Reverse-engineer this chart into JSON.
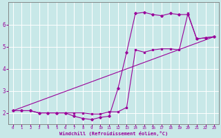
{
  "xlabel": "Windchill (Refroidissement éolien,°C)",
  "x_ticks": [
    0,
    1,
    2,
    3,
    4,
    5,
    6,
    7,
    8,
    9,
    10,
    11,
    12,
    13,
    14,
    15,
    16,
    17,
    18,
    19,
    20,
    21,
    22,
    23
  ],
  "ylim": [
    1.5,
    7.0
  ],
  "xlim": [
    -0.5,
    23.5
  ],
  "yticks": [
    2,
    3,
    4,
    5,
    6
  ],
  "background_color": "#c8e8e8",
  "line_color": "#990099",
  "grid_color": "#ffffff",
  "line1_y": [
    2.1,
    2.1,
    2.1,
    2.0,
    2.0,
    2.0,
    2.0,
    1.85,
    1.75,
    1.7,
    1.8,
    1.85,
    3.1,
    4.75,
    6.5,
    6.55,
    6.45,
    6.4,
    6.5,
    6.45,
    6.45,
    5.35,
    5.4,
    5.45
  ],
  "line2_y": [
    2.1,
    2.1,
    2.1,
    2.0,
    2.0,
    2.0,
    2.0,
    2.0,
    2.0,
    1.95,
    1.95,
    2.05,
    2.05,
    2.25,
    4.85,
    4.75,
    4.85,
    4.9,
    4.9,
    4.85,
    6.5,
    5.35,
    5.4,
    5.45
  ],
  "line3_x": [
    0,
    23
  ],
  "line3_y": [
    2.1,
    5.45
  ]
}
